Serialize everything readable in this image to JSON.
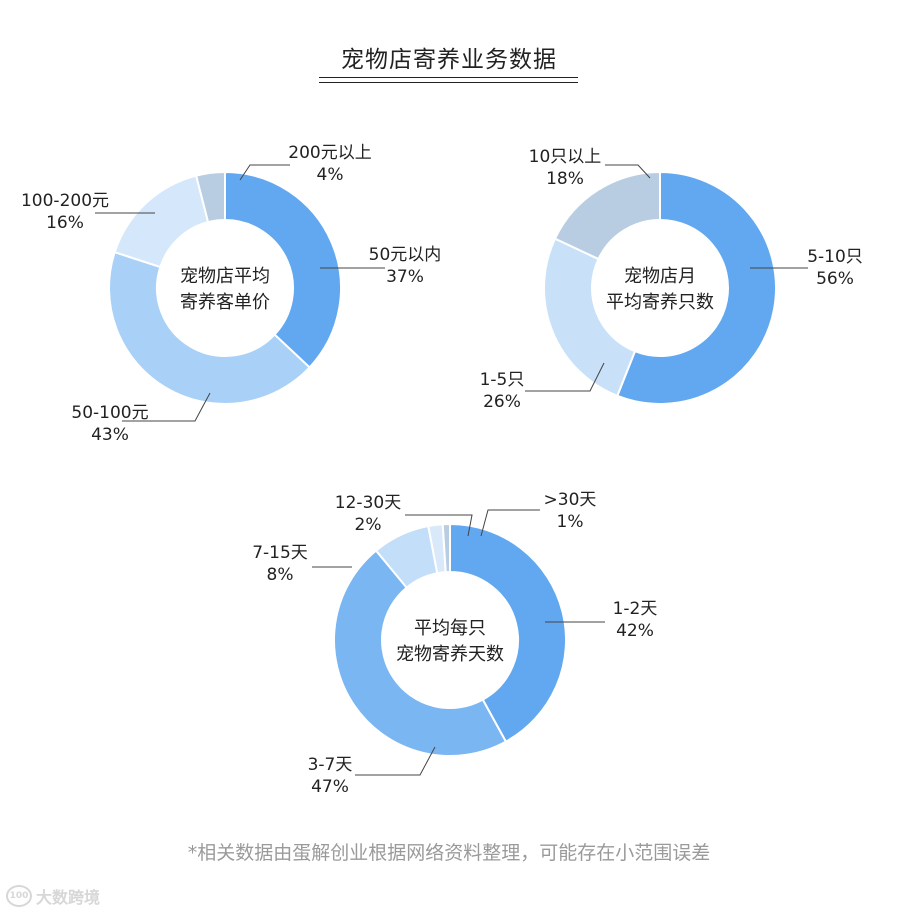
{
  "title": "宠物店寄养业务数据",
  "footnote": "*相关数据由蛋解创业根据网络资料整理，可能存在小范围误差",
  "watermark": {
    "mark": "100",
    "text": "大数跨境"
  },
  "chart_data": [
    {
      "type": "pie",
      "center_label": [
        "宠物店平均",
        "寄养客单价"
      ],
      "slices": [
        {
          "label": "50元以内",
          "value": 37,
          "value_text": "37%",
          "color": "#62a8f0"
        },
        {
          "label": "50-100元",
          "value": 43,
          "value_text": "43%",
          "color": "#a9d1f7"
        },
        {
          "label": "100-200元",
          "value": 16,
          "value_text": "16%",
          "color": "#d5e7fa"
        },
        {
          "label": "200元以上",
          "value": 4,
          "value_text": "4%",
          "color": "#b9cde2"
        }
      ]
    },
    {
      "type": "pie",
      "center_label": [
        "宠物店月",
        "平均寄养只数"
      ],
      "slices": [
        {
          "label": "5-10只",
          "value": 56,
          "value_text": "56%",
          "color": "#62a8f0"
        },
        {
          "label": "1-5只",
          "value": 26,
          "value_text": "26%",
          "color": "#c9e1f8"
        },
        {
          "label": "10只以上",
          "value": 18,
          "value_text": "18%",
          "color": "#b9cde2"
        }
      ]
    },
    {
      "type": "pie",
      "center_label": [
        "平均每只",
        "宠物寄养天数"
      ],
      "slices": [
        {
          "label": "1-2天",
          "value": 42,
          "value_text": "42%",
          "color": "#62a8f0"
        },
        {
          "label": "3-7天",
          "value": 47,
          "value_text": "47%",
          "color": "#7ab6f2"
        },
        {
          "label": "7-15天",
          "value": 8,
          "value_text": "8%",
          "color": "#c3def8"
        },
        {
          "label": "12-30天",
          "value": 2,
          "value_text": "2%",
          "color": "#d9e9fa"
        },
        {
          "label": ">30天",
          "value": 1,
          "value_text": "1%",
          "color": "#b9cde2"
        }
      ]
    }
  ]
}
